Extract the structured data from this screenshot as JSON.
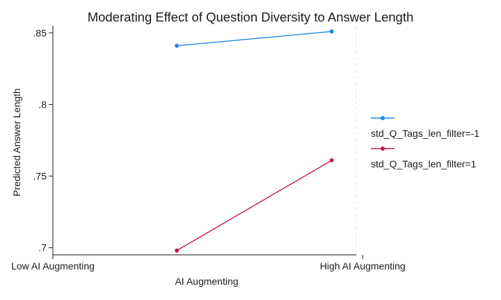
{
  "chart_data": {
    "type": "line",
    "title": "Moderating Effect of Question Diversity to Answer Length",
    "xlabel": "AI Augmenting",
    "ylabel": "Predicted Answer Length",
    "x_ticks": [
      {
        "value": 0,
        "label": "Low AI Augmenting"
      },
      {
        "value": 1,
        "label": "High AI Augmenting"
      }
    ],
    "y_ticks": [
      {
        "value": 0.7,
        "label": ".7"
      },
      {
        "value": 0.75,
        "label": ".75"
      },
      {
        "value": 0.8,
        "label": ".8"
      },
      {
        "value": 0.85,
        "label": ".85"
      }
    ],
    "xlim": [
      0,
      1.15
    ],
    "ylim": [
      0.695,
      0.855
    ],
    "grid": false,
    "legend_position": "right",
    "series": [
      {
        "name": "std_Q_Tags_len_filter=-1",
        "color": "#1e88e5",
        "points": [
          {
            "x": 0.4,
            "y": 0.841
          },
          {
            "x": 0.9,
            "y": 0.851
          }
        ]
      },
      {
        "name": "std_Q_Tags_len_filter=1",
        "color": "#c2185b",
        "points": [
          {
            "x": 0.4,
            "y": 0.698
          },
          {
            "x": 0.9,
            "y": 0.761
          }
        ]
      }
    ]
  }
}
